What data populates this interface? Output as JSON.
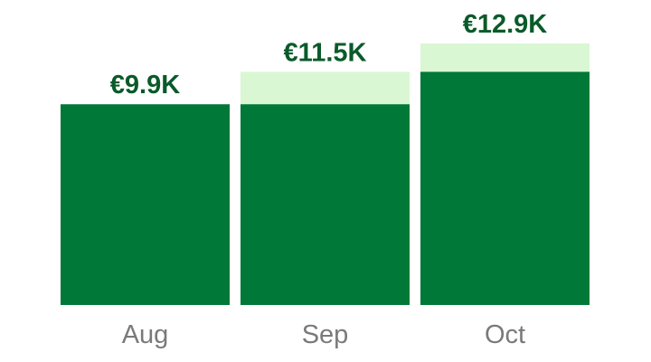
{
  "chart_data": {
    "type": "bar",
    "categories": [
      "Aug",
      "Sep",
      "Oct"
    ],
    "values": [
      9.9,
      11.5,
      12.9
    ],
    "labels": [
      "€9.9K",
      "€11.5K",
      "€12.9K"
    ],
    "unit": "K EUR",
    "ylim": [
      0,
      12.9
    ],
    "grid": false,
    "colors": {
      "bar": "#007837",
      "increment": "#d9f7d3",
      "value_label": "#0a5a2a",
      "category_label": "#7a7a7a"
    }
  }
}
